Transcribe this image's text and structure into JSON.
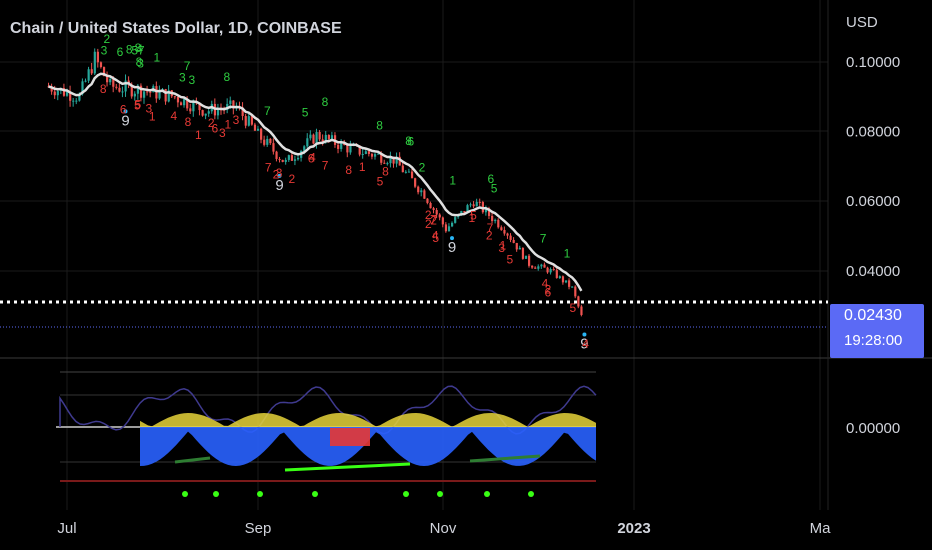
{
  "header": {
    "title": "Chain / United States Dollar, 1D, COINBASE",
    "currency": "USD"
  },
  "colors": {
    "background": "#000000",
    "up": "#26a69a",
    "down": "#ef5350",
    "ema_line": "#e0e0e0",
    "td_up_label": "#2ecc40",
    "td_down_label": "#e53935",
    "td_nine": "#29b6f6",
    "price_tag": "#5b6af5",
    "osc_blue": "#2962ff",
    "osc_yellow": "#e6d43a",
    "osc_red": "#e53935",
    "osc_line": "#3f3a8f",
    "osc_green": "#39ff14"
  },
  "price_tag": {
    "price": "0.02430",
    "countdown": "19:28:00"
  },
  "chart_data": {
    "type": "candlestick",
    "title": "Chain / United States Dollar, 1D, COINBASE",
    "y_axis": {
      "unit": "USD",
      "ticks": [
        "0.10000",
        "0.08000",
        "0.06000",
        "0.04000"
      ],
      "range": [
        0.017,
        0.108
      ]
    },
    "x_axis": {
      "ticks": [
        "Jul",
        "Sep",
        "Nov",
        "2023",
        "Ma"
      ]
    },
    "last_price": 0.0243,
    "reference_line": 0.0305,
    "close_series": [
      {
        "date": "2022-06-25",
        "close": 0.093
      },
      {
        "date": "2022-07-05",
        "close": 0.09
      },
      {
        "date": "2022-07-10",
        "close": 0.101
      },
      {
        "date": "2022-07-15",
        "close": 0.093
      },
      {
        "date": "2022-07-25",
        "close": 0.092
      },
      {
        "date": "2022-08-05",
        "close": 0.09
      },
      {
        "date": "2022-08-15",
        "close": 0.086
      },
      {
        "date": "2022-08-25",
        "close": 0.087
      },
      {
        "date": "2022-09-01",
        "close": 0.079
      },
      {
        "date": "2022-09-10",
        "close": 0.071
      },
      {
        "date": "2022-09-20",
        "close": 0.079
      },
      {
        "date": "2022-10-01",
        "close": 0.075
      },
      {
        "date": "2022-10-15",
        "close": 0.072
      },
      {
        "date": "2022-10-25",
        "close": 0.062
      },
      {
        "date": "2022-11-01",
        "close": 0.052
      },
      {
        "date": "2022-11-10",
        "close": 0.06
      },
      {
        "date": "2022-11-20",
        "close": 0.052
      },
      {
        "date": "2022-11-28",
        "close": 0.042
      },
      {
        "date": "2022-12-05",
        "close": 0.04
      },
      {
        "date": "2022-12-12",
        "close": 0.035
      },
      {
        "date": "2022-12-16",
        "close": 0.0243
      }
    ],
    "td_markers": [
      {
        "date": "2022-07-20",
        "label": "9"
      },
      {
        "date": "2022-09-08",
        "label": "9"
      },
      {
        "date": "2022-11-03",
        "label": "9"
      },
      {
        "date": "2022-12-16",
        "label": "9"
      }
    ],
    "oscillator": {
      "zero_label": "0.00000"
    }
  }
}
